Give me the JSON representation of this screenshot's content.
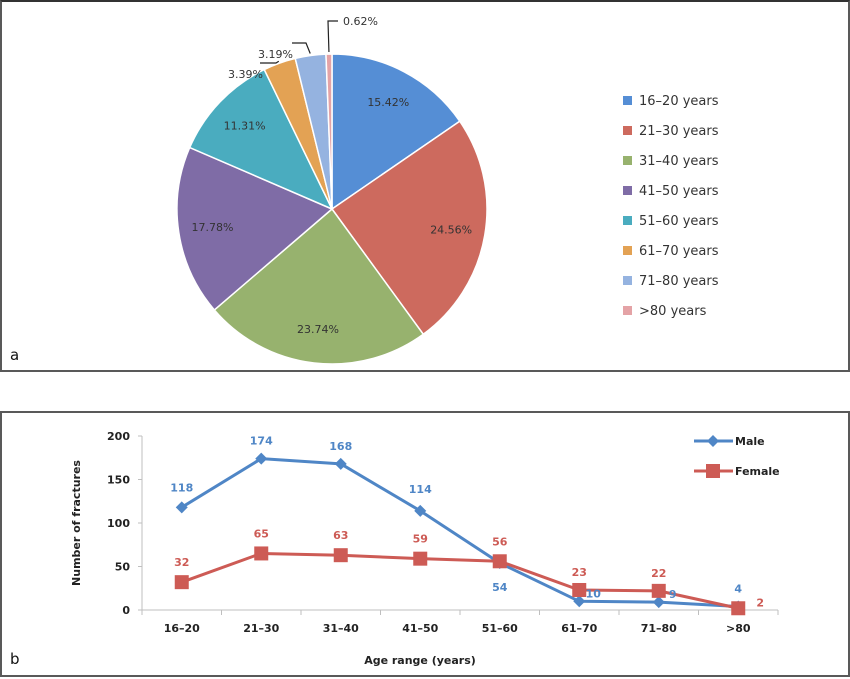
{
  "chart_data": [
    {
      "type": "pie",
      "panel_label": "a",
      "title": "",
      "categories": [
        "16–20 years",
        "21–30 years",
        "31–40 years",
        "41–50 years",
        "51–60 years",
        "61–70 years",
        "71–80 years",
        ">80 years"
      ],
      "values": [
        15.42,
        24.56,
        23.74,
        17.78,
        11.31,
        3.39,
        3.19,
        0.62
      ],
      "value_labels": [
        "15.42%",
        "24.56%",
        "23.74%",
        "17.78%",
        "11.31%",
        "3.39%",
        "3.19%",
        "0.62%"
      ],
      "colors": [
        "#558ED5",
        "#CD6A5E",
        "#97B26E",
        "#7F6CA6",
        "#4AACBF",
        "#E3A254",
        "#95B3E0",
        "#E4A3A6"
      ],
      "legend_position": "right"
    },
    {
      "type": "line",
      "panel_label": "b",
      "title": "",
      "xlabel": "Age range (years)",
      "ylabel": "Number of fractures",
      "categories": [
        "16–20",
        "21–30",
        "31–40",
        "41–50",
        "51–60",
        "61–70",
        "71–80",
        ">80"
      ],
      "ylim": [
        0,
        200
      ],
      "yticks": [
        0,
        50,
        100,
        150,
        200
      ],
      "grid": false,
      "legend_position": "top-right",
      "series": [
        {
          "name": "Male",
          "marker": "diamond",
          "color": "#4F86C6",
          "values": [
            118,
            174,
            168,
            114,
            54,
            10,
            9,
            4
          ]
        },
        {
          "name": "Female",
          "marker": "square",
          "color": "#CD5B55",
          "values": [
            32,
            65,
            63,
            59,
            56,
            23,
            22,
            2
          ]
        }
      ]
    }
  ]
}
